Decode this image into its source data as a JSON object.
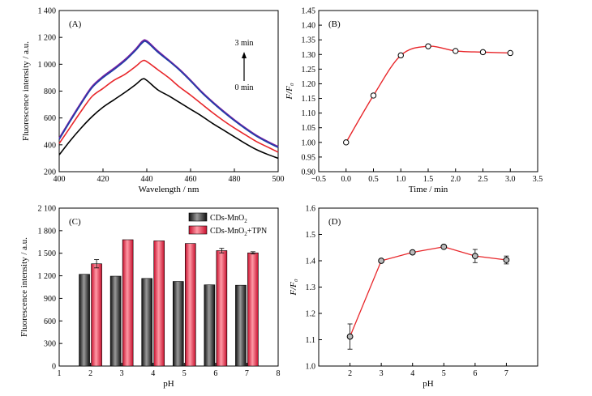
{
  "chart_data": [
    {
      "panel": "(A)",
      "type": "line",
      "xlabel": "Wavelength / nm",
      "ylabel": "Fluorescence intensity / a.u.",
      "xlim": [
        400,
        500
      ],
      "ylim": [
        200,
        1400
      ],
      "xticks": [
        400,
        420,
        440,
        460,
        480,
        500
      ],
      "yticks": [
        200,
        400,
        600,
        800,
        1000,
        1200,
        1400
      ],
      "ytick_labels": [
        "200",
        "400",
        "600",
        "800",
        "1 000",
        "1 200",
        "1 400"
      ],
      "annotation_top": "3 min",
      "annotation_bottom": "0 min",
      "series": [
        {
          "color": "#000000",
          "x": [
            400,
            405,
            410,
            415,
            420,
            425,
            430,
            435,
            438,
            440,
            445,
            450,
            455,
            460,
            465,
            470,
            475,
            480,
            485,
            490,
            495,
            500
          ],
          "y": [
            325,
            430,
            525,
            610,
            680,
            735,
            790,
            850,
            890,
            880,
            810,
            765,
            715,
            665,
            615,
            560,
            510,
            460,
            410,
            365,
            330,
            300
          ]
        },
        {
          "color": "#e8262a",
          "x": [
            400,
            405,
            410,
            415,
            420,
            425,
            430,
            435,
            438,
            440,
            445,
            450,
            455,
            460,
            465,
            470,
            475,
            480,
            485,
            490,
            495,
            500
          ],
          "y": [
            410,
            530,
            650,
            760,
            820,
            880,
            925,
            985,
            1025,
            1020,
            960,
            900,
            830,
            770,
            705,
            640,
            580,
            525,
            475,
            425,
            385,
            345
          ]
        },
        {
          "color": "#2e7d32",
          "x": [
            400,
            405,
            410,
            415,
            420,
            425,
            430,
            435,
            438,
            440,
            445,
            450,
            455,
            460,
            465,
            470,
            475,
            480,
            485,
            490,
            495,
            500
          ],
          "y": [
            445,
            580,
            710,
            830,
            905,
            965,
            1030,
            1110,
            1165,
            1170,
            1095,
            1030,
            960,
            880,
            795,
            720,
            650,
            585,
            525,
            470,
            425,
            385
          ]
        },
        {
          "color": "#7b1fa2",
          "x": [
            400,
            405,
            410,
            415,
            420,
            425,
            430,
            435,
            438,
            440,
            445,
            450,
            455,
            460,
            465,
            470,
            475,
            480,
            485,
            490,
            495,
            500
          ],
          "y": [
            450,
            585,
            715,
            835,
            910,
            970,
            1035,
            1115,
            1172,
            1175,
            1100,
            1032,
            962,
            882,
            797,
            722,
            652,
            587,
            527,
            472,
            427,
            387
          ]
        },
        {
          "color": "#1e3fa8",
          "x": [
            400,
            405,
            410,
            415,
            420,
            425,
            430,
            435,
            438,
            440,
            445,
            450,
            455,
            460,
            465,
            470,
            475,
            480,
            485,
            490,
            495,
            500
          ],
          "y": [
            440,
            575,
            705,
            825,
            900,
            960,
            1025,
            1105,
            1160,
            1165,
            1090,
            1025,
            955,
            875,
            790,
            715,
            645,
            580,
            520,
            465,
            420,
            380
          ]
        }
      ]
    },
    {
      "panel": "(B)",
      "type": "scatter",
      "xlabel": "Time / min",
      "ylabel": "F/F₀",
      "xlim": [
        -0.5,
        3.5
      ],
      "ylim": [
        0.9,
        1.45
      ],
      "xticks": [
        -0.5,
        0.0,
        0.5,
        1.0,
        1.5,
        2.0,
        2.5,
        3.0,
        3.5
      ],
      "xtick_labels": [
        "−0.5",
        "0.0",
        "0.5",
        "1.0",
        "1.5",
        "2.0",
        "2.5",
        "3.0",
        "3.5"
      ],
      "yticks": [
        0.9,
        0.95,
        1.0,
        1.05,
        1.1,
        1.15,
        1.2,
        1.25,
        1.3,
        1.35,
        1.4,
        1.45
      ],
      "ytick_labels": [
        "0.90",
        "0.95",
        "1.00",
        "1.05",
        "1.10",
        "1.15",
        "1.20",
        "1.25",
        "1.30",
        "1.35",
        "1.40",
        "1.45"
      ],
      "series": [
        {
          "x": [
            0.0,
            0.5,
            1.0,
            1.5,
            2.0,
            2.5,
            3.0
          ],
          "y": [
            1.0,
            1.16,
            1.297,
            1.328,
            1.312,
            1.308,
            1.305
          ],
          "fit": "smooth"
        }
      ]
    },
    {
      "panel": "(C)",
      "type": "bar",
      "xlabel": "pH",
      "ylabel": "Fluorescence intensity / a.u.",
      "xlim": [
        1,
        8
      ],
      "ylim": [
        0,
        2100
      ],
      "xticks": [
        1,
        2,
        3,
        4,
        5,
        6,
        7,
        8
      ],
      "yticks": [
        0,
        300,
        600,
        900,
        1200,
        1500,
        1800,
        2100
      ],
      "ytick_labels": [
        "0",
        "300",
        "600",
        "900",
        "1 200",
        "1 500",
        "1 800",
        "2 100"
      ],
      "categories": [
        2,
        3,
        4,
        5,
        6,
        7
      ],
      "series": [
        {
          "name": "CDs-MnO₂",
          "legend_main": "CDs-MnO",
          "legend_sub": "2",
          "legend_tail": "",
          "values": [
            1220,
            1195,
            1165,
            1125,
            1080,
            1075
          ],
          "errors": [
            0,
            0,
            0,
            0,
            0,
            0
          ]
        },
        {
          "name": "CDs-MnO₂+TPN",
          "legend_main": "CDs-MnO",
          "legend_sub": "2",
          "legend_tail": "+TPN",
          "values": [
            1360,
            1680,
            1665,
            1630,
            1535,
            1505
          ],
          "errors": [
            55,
            0,
            0,
            0,
            30,
            15
          ]
        }
      ]
    },
    {
      "panel": "(D)",
      "type": "line",
      "xlabel": "pH",
      "ylabel": "F/F₀",
      "xlim": [
        1,
        8
      ],
      "ylim": [
        1.0,
        1.6
      ],
      "xticks": [
        2,
        3,
        4,
        5,
        6,
        7
      ],
      "yticks": [
        1.0,
        1.1,
        1.2,
        1.3,
        1.4,
        1.5,
        1.6
      ],
      "ytick_labels": [
        "1.0",
        "1.1",
        "1.2",
        "1.3",
        "1.4",
        "1.5",
        "1.6"
      ],
      "series": [
        {
          "x": [
            2,
            3,
            4,
            5,
            6,
            7
          ],
          "y": [
            1.112,
            1.4,
            1.432,
            1.453,
            1.418,
            1.403
          ],
          "errors": [
            0.048,
            0.005,
            0.004,
            0.005,
            0.025,
            0.015
          ]
        }
      ]
    }
  ]
}
